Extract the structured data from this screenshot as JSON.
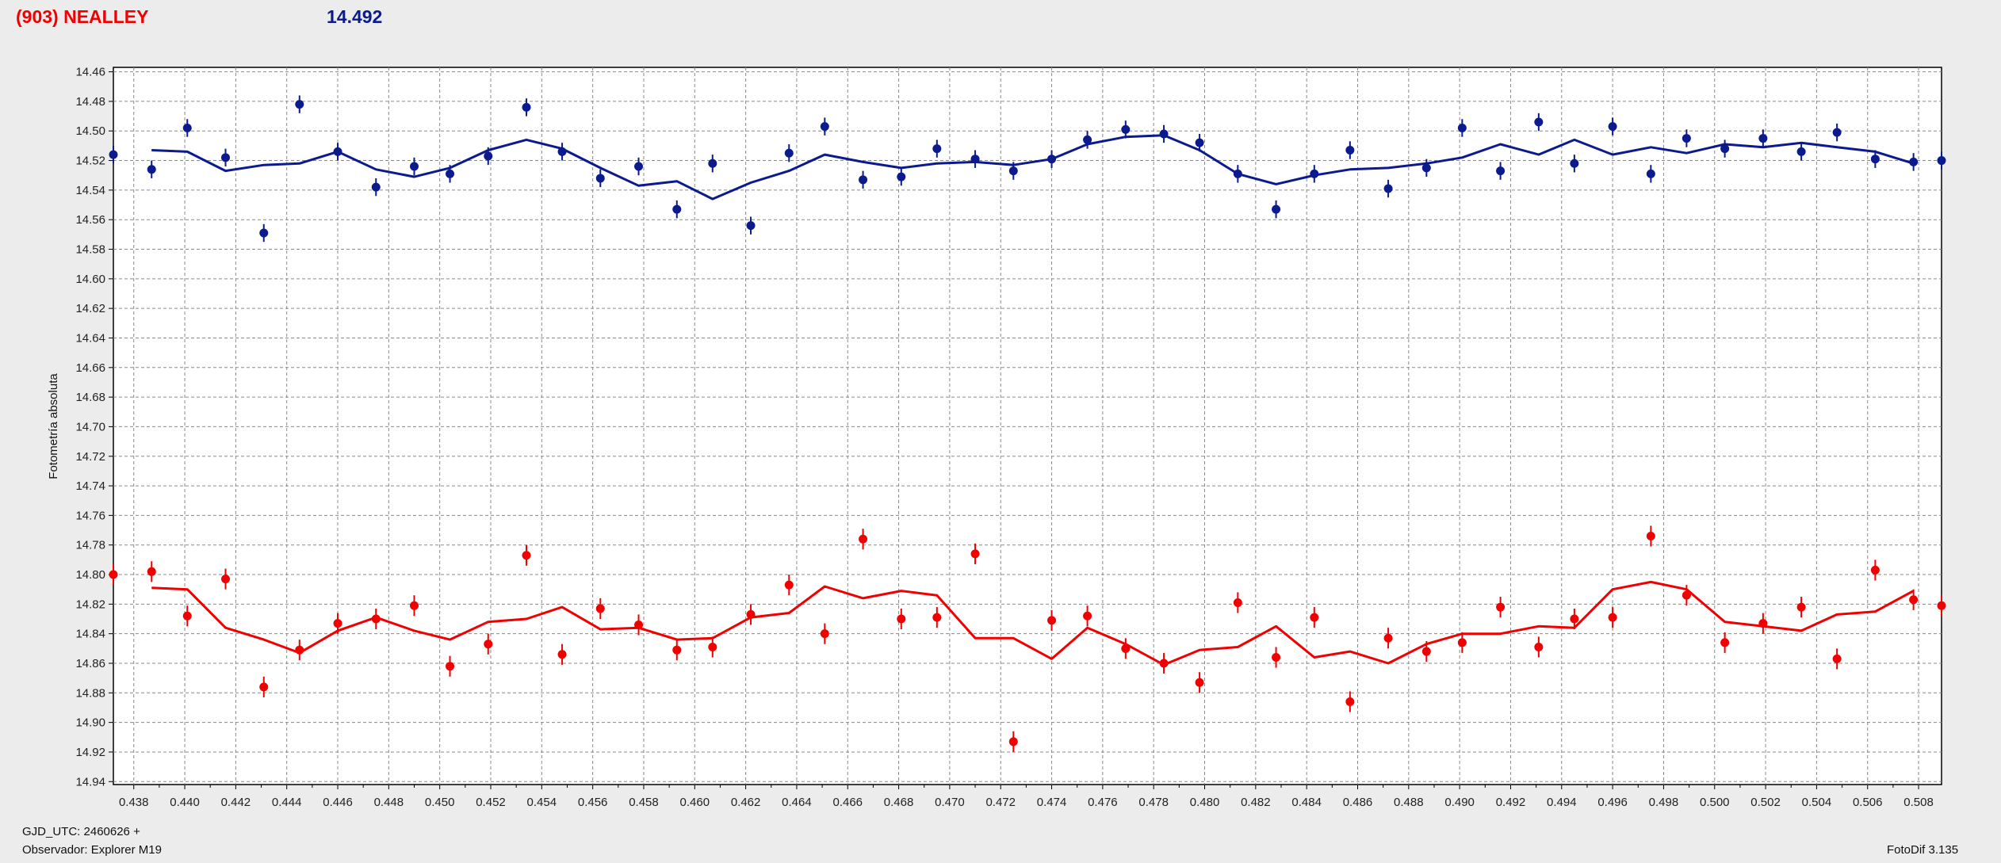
{
  "header": {
    "object": "(903) NEALLEY",
    "value": "14.492"
  },
  "footer": {
    "gjd": "GJD_UTC: 2460626 +",
    "observer": "Observador: Explorer M19",
    "software": "FotoDif 3.135"
  },
  "colors": {
    "series1": "#0b1a8c",
    "series2": "#f00000",
    "plot_bg": "#ffffff",
    "grid": "#8a8a8a",
    "page_bg": "#ececec"
  },
  "chart_data": {
    "type": "scatter",
    "title": "",
    "xlabel": "",
    "ylabel": "Fotometría absoluta",
    "xlim": [
      0.4372,
      0.5089
    ],
    "ylim": [
      14.942,
      14.457
    ],
    "y_inverted": true,
    "grid": true,
    "x_ticks": [
      "0.438",
      "0.440",
      "0.442",
      "0.444",
      "0.446",
      "0.448",
      "0.450",
      "0.452",
      "0.454",
      "0.456",
      "0.458",
      "0.460",
      "0.462",
      "0.464",
      "0.466",
      "0.468",
      "0.470",
      "0.472",
      "0.474",
      "0.476",
      "0.478",
      "0.480",
      "0.482",
      "0.484",
      "0.486",
      "0.488",
      "0.490",
      "0.492",
      "0.494",
      "0.496",
      "0.498",
      "0.500",
      "0.502",
      "0.504",
      "0.506",
      "0.508"
    ],
    "y_ticks": [
      "14.46",
      "14.48",
      "14.50",
      "14.52",
      "14.54",
      "14.56",
      "14.58",
      "14.60",
      "14.62",
      "14.64",
      "14.66",
      "14.68",
      "14.70",
      "14.72",
      "14.74",
      "14.76",
      "14.78",
      "14.80",
      "14.82",
      "14.84",
      "14.86",
      "14.88",
      "14.90",
      "14.92",
      "14.94"
    ],
    "series": [
      {
        "x": [
          0.4372,
          0.4387,
          0.4401,
          0.4416,
          0.4431,
          0.4445,
          0.446,
          0.4475,
          0.449,
          0.4504,
          0.4519,
          0.4534,
          0.4548,
          0.4563,
          0.4578,
          0.4593,
          0.4607,
          0.4622,
          0.4637,
          0.4651,
          0.4666,
          0.4681,
          0.4695,
          0.471,
          0.4725,
          0.474,
          0.4754,
          0.4769,
          0.4784,
          0.4798,
          0.4813,
          0.4828,
          0.4843,
          0.4857,
          0.4872,
          0.4887,
          0.4901,
          0.4916,
          0.4931,
          0.4945,
          0.496,
          0.4975,
          0.4989,
          0.5004,
          0.5019,
          0.5034,
          0.5048,
          0.5063,
          0.5078,
          0.5089
        ],
        "y": [
          14.516,
          14.526,
          14.498,
          14.518,
          14.569,
          14.482,
          14.514,
          14.538,
          14.524,
          14.529,
          14.517,
          14.484,
          14.514,
          14.532,
          14.524,
          14.553,
          14.522,
          14.564,
          14.515,
          14.497,
          14.533,
          14.531,
          14.512,
          14.519,
          14.527,
          14.519,
          14.506,
          14.499,
          14.502,
          14.508,
          14.529,
          14.553,
          14.529,
          14.513,
          14.539,
          14.525,
          14.498,
          14.527,
          14.494,
          14.522,
          14.497,
          14.529,
          14.505,
          14.512,
          14.505,
          14.514,
          14.501,
          14.519,
          14.521,
          14.52
        ],
        "err": 0.006,
        "fit_x": [
          0.4387,
          0.4401,
          0.4416,
          0.4431,
          0.4445,
          0.446,
          0.4475,
          0.449,
          0.4504,
          0.4519,
          0.4534,
          0.4548,
          0.4563,
          0.4578,
          0.4593,
          0.4607,
          0.4622,
          0.4637,
          0.4651,
          0.4666,
          0.4681,
          0.4695,
          0.471,
          0.4725,
          0.474,
          0.4754,
          0.4769,
          0.4784,
          0.4798,
          0.4813,
          0.4828,
          0.4843,
          0.4857,
          0.4872,
          0.4887,
          0.4901,
          0.4916,
          0.4931,
          0.4945,
          0.496,
          0.4975,
          0.4989,
          0.5004,
          0.5019,
          0.5034,
          0.5048,
          0.5063,
          0.5078
        ],
        "fit_y": [
          14.513,
          14.514,
          14.527,
          14.523,
          14.522,
          14.514,
          14.526,
          14.531,
          14.525,
          14.513,
          14.506,
          14.512,
          14.525,
          14.537,
          14.534,
          14.546,
          14.535,
          14.527,
          14.516,
          14.521,
          14.525,
          14.522,
          14.521,
          14.523,
          14.519,
          14.509,
          14.504,
          14.503,
          14.513,
          14.529,
          14.536,
          14.53,
          14.526,
          14.525,
          14.522,
          14.518,
          14.509,
          14.516,
          14.506,
          14.516,
          14.511,
          14.515,
          14.509,
          14.511,
          14.508,
          14.511,
          14.514,
          14.522
        ]
      },
      {
        "x": [
          0.4372,
          0.4387,
          0.4401,
          0.4416,
          0.4431,
          0.4445,
          0.446,
          0.4475,
          0.449,
          0.4504,
          0.4519,
          0.4534,
          0.4548,
          0.4563,
          0.4578,
          0.4593,
          0.4607,
          0.4622,
          0.4637,
          0.4651,
          0.4666,
          0.4681,
          0.4695,
          0.471,
          0.4725,
          0.474,
          0.4754,
          0.4769,
          0.4784,
          0.4798,
          0.4813,
          0.4828,
          0.4843,
          0.4857,
          0.4872,
          0.4887,
          0.4901,
          0.4916,
          0.4931,
          0.4945,
          0.496,
          0.4975,
          0.4989,
          0.5004,
          0.5019,
          0.5034,
          0.5048,
          0.5063,
          0.5078,
          0.5089
        ],
        "y": [
          14.8,
          14.798,
          14.828,
          14.803,
          14.876,
          14.851,
          14.833,
          14.83,
          14.821,
          14.862,
          14.847,
          14.787,
          14.854,
          14.823,
          14.834,
          14.851,
          14.849,
          14.827,
          14.807,
          14.84,
          14.776,
          14.83,
          14.829,
          14.786,
          14.913,
          14.831,
          14.828,
          14.85,
          14.86,
          14.873,
          14.819,
          14.856,
          14.829,
          14.886,
          14.843,
          14.852,
          14.846,
          14.822,
          14.849,
          14.83,
          14.829,
          14.774,
          14.814,
          14.846,
          14.833,
          14.822,
          14.857,
          14.797,
          14.817,
          14.821
        ],
        "err": 0.007,
        "fit_x": [
          0.4387,
          0.4401,
          0.4416,
          0.4431,
          0.4445,
          0.446,
          0.4475,
          0.449,
          0.4504,
          0.4519,
          0.4534,
          0.4548,
          0.4563,
          0.4578,
          0.4593,
          0.4607,
          0.4622,
          0.4637,
          0.4651,
          0.4666,
          0.4681,
          0.4695,
          0.471,
          0.4725,
          0.474,
          0.4754,
          0.4769,
          0.4784,
          0.4798,
          0.4813,
          0.4828,
          0.4843,
          0.4857,
          0.4872,
          0.4887,
          0.4901,
          0.4916,
          0.4931,
          0.4945,
          0.496,
          0.4975,
          0.4989,
          0.5004,
          0.5019,
          0.5034,
          0.5048,
          0.5063,
          0.5078
        ],
        "fit_y": [
          14.809,
          14.81,
          14.836,
          14.844,
          14.853,
          14.838,
          14.829,
          14.838,
          14.844,
          14.832,
          14.83,
          14.822,
          14.837,
          14.836,
          14.844,
          14.843,
          14.829,
          14.826,
          14.808,
          14.816,
          14.811,
          14.814,
          14.843,
          14.843,
          14.857,
          14.836,
          14.847,
          14.861,
          14.851,
          14.849,
          14.835,
          14.856,
          14.852,
          14.86,
          14.847,
          14.84,
          14.84,
          14.835,
          14.836,
          14.81,
          14.805,
          14.81,
          14.832,
          14.835,
          14.838,
          14.827,
          14.825,
          14.811
        ]
      }
    ]
  }
}
